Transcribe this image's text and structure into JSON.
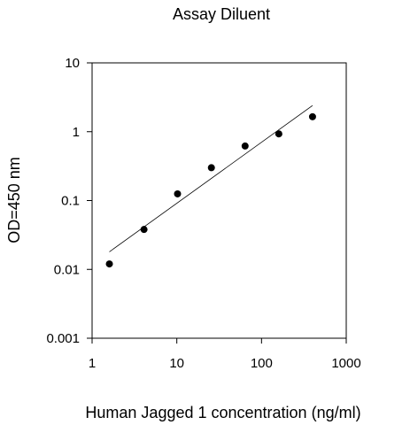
{
  "chart_data": {
    "type": "scatter",
    "title": "Assay Diluent",
    "xlabel": "Human Jagged 1 concentration (ng/ml)",
    "ylabel": "OD=450 nm",
    "xscale": "log",
    "yscale": "log",
    "xlim": [
      1,
      1000
    ],
    "ylim": [
      0.001,
      10
    ],
    "xticks": [
      "1",
      "10",
      "100",
      "1000"
    ],
    "yticks": [
      "0.001",
      "0.01",
      "0.1",
      "1",
      "10"
    ],
    "grid": false,
    "series": [
      {
        "points": [
          {
            "x": 1.6,
            "y": 0.012
          },
          {
            "x": 4.1,
            "y": 0.038
          },
          {
            "x": 10.2,
            "y": 0.125
          },
          {
            "x": 25.6,
            "y": 0.3
          },
          {
            "x": 64,
            "y": 0.62
          },
          {
            "x": 160,
            "y": 0.93
          },
          {
            "x": 400,
            "y": 1.65
          }
        ],
        "marker_color": "#000000"
      }
    ],
    "fit_line": {
      "x1": 1.6,
      "y1": 0.018,
      "x2": 400,
      "y2": 2.4,
      "color": "#000000"
    }
  }
}
